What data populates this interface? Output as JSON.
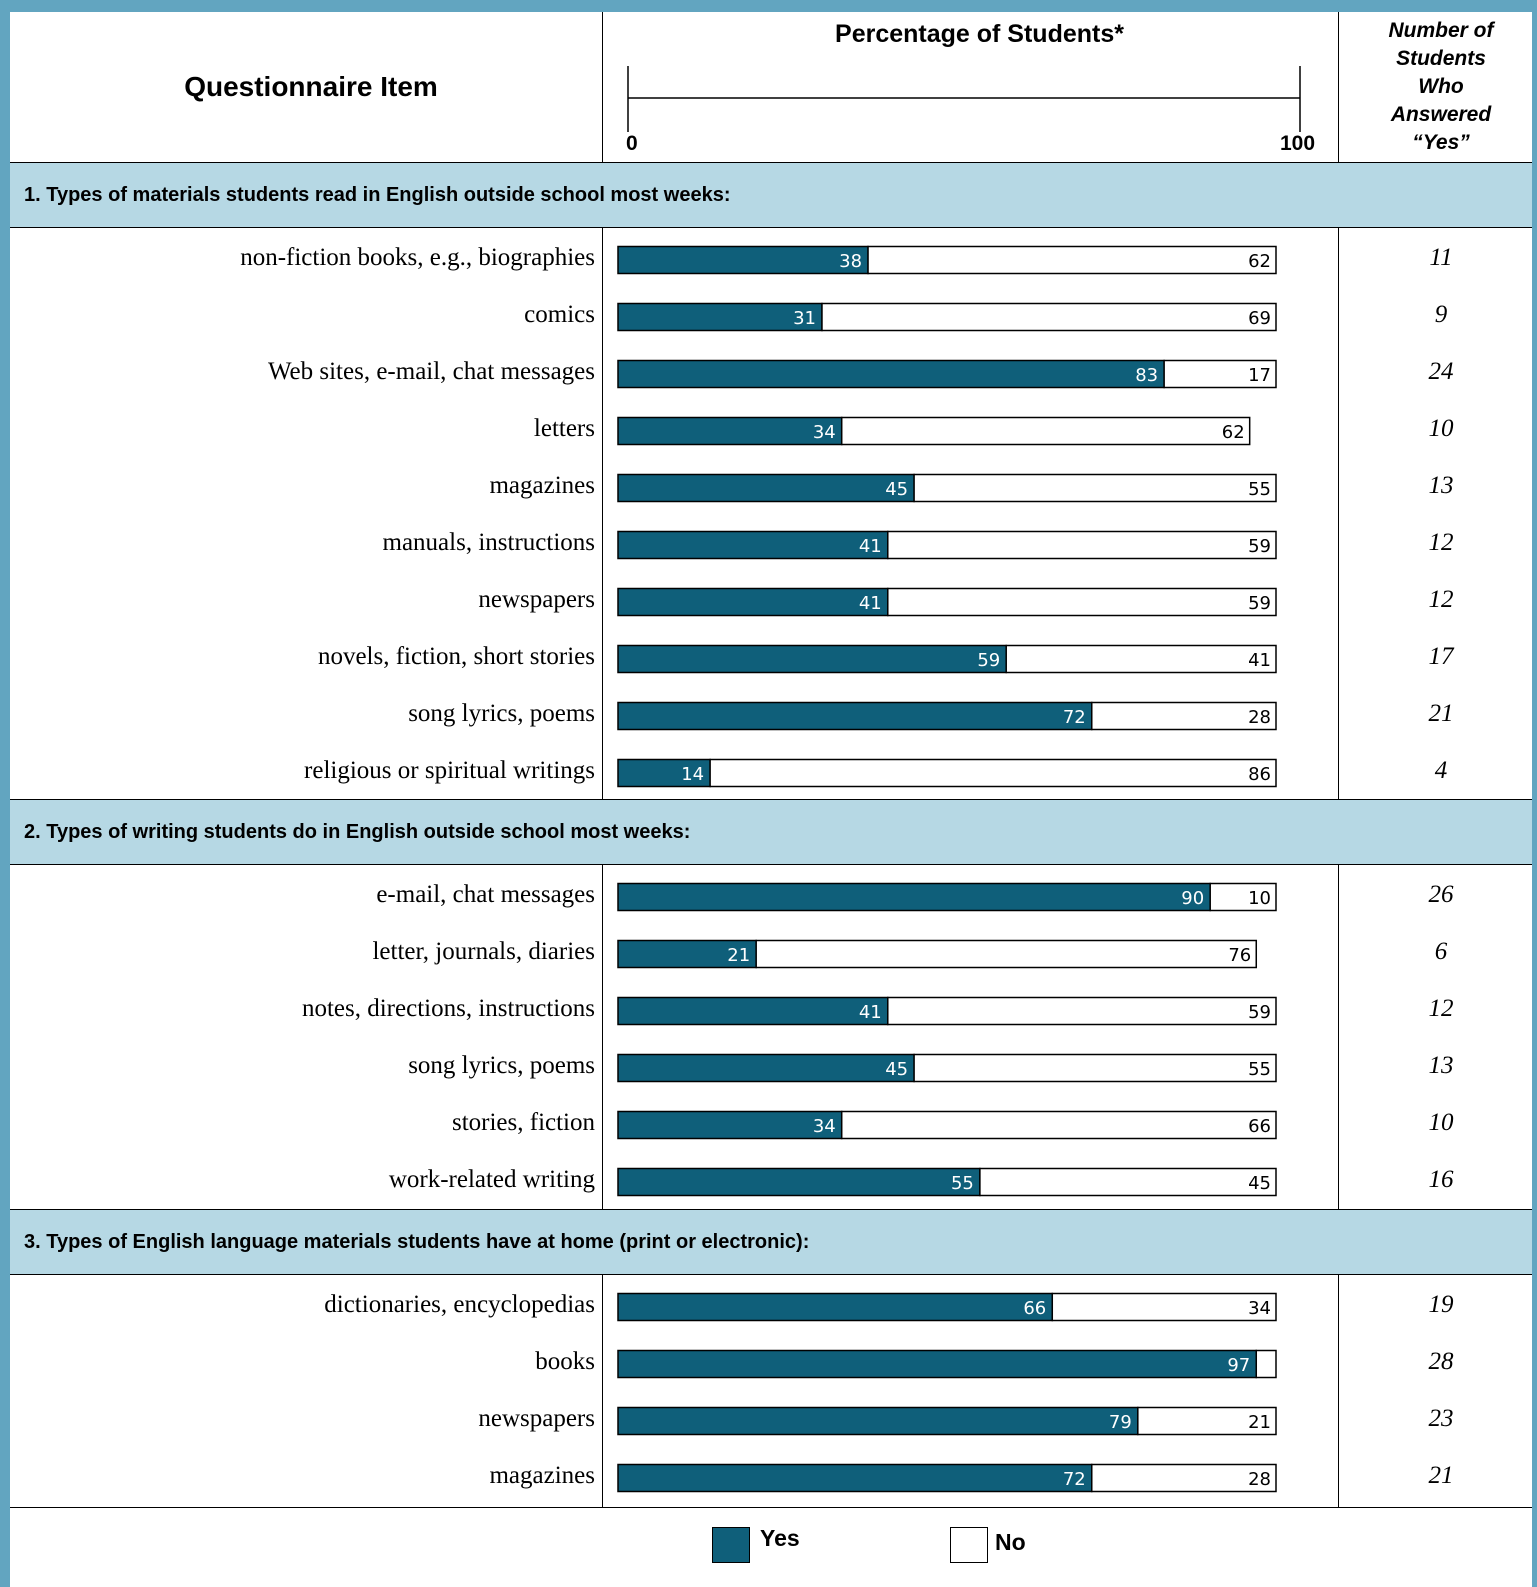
{
  "header": {
    "questionnaire_item": "Questionnaire Item",
    "percentage_title": "Percentage of Students*",
    "axis_min_label": "0",
    "axis_max_label": "100",
    "count_col_line1": "Number of",
    "count_col_line2": "Students",
    "count_col_line3": "Who",
    "count_col_line4": "Answered",
    "count_col_line5": "“Yes”"
  },
  "legend": {
    "yes_label": "Yes",
    "no_label": "No"
  },
  "colors": {
    "yes": "#0f5f7a",
    "no": "#ffffff",
    "band": "#b6d8e4",
    "frame": "#62a5c0"
  },
  "chart_data": {
    "type": "bar",
    "stacked": true,
    "orientation": "horizontal",
    "xlim": [
      0,
      100
    ],
    "series_names": [
      "Yes",
      "No"
    ],
    "sections": [
      {
        "title": "1. Types of materials students read in English outside school most weeks:",
        "items": [
          {
            "label": "non-fiction books, e.g., biographies",
            "yes": 38,
            "no": 62,
            "count": "11"
          },
          {
            "label": "comics",
            "yes": 31,
            "no": 69,
            "count": "9"
          },
          {
            "label": "Web sites, e-mail, chat messages",
            "yes": 83,
            "no": 17,
            "count": "24"
          },
          {
            "label": "letters",
            "yes": 34,
            "no": 62,
            "count": "10"
          },
          {
            "label": "magazines",
            "yes": 45,
            "no": 55,
            "count": "13"
          },
          {
            "label": "manuals, instructions",
            "yes": 41,
            "no": 59,
            "count": "12"
          },
          {
            "label": "newspapers",
            "yes": 41,
            "no": 59,
            "count": "12"
          },
          {
            "label": "novels, fiction, short stories",
            "yes": 59,
            "no": 41,
            "count": "17"
          },
          {
            "label": "song lyrics, poems",
            "yes": 72,
            "no": 28,
            "count": "21"
          },
          {
            "label": "religious or spiritual writings",
            "yes": 14,
            "no": 86,
            "count": "4"
          }
        ]
      },
      {
        "title": "2. Types of writing students do in English outside school most weeks:",
        "items": [
          {
            "label": "e-mail, chat messages",
            "yes": 90,
            "no": 10,
            "count": "26"
          },
          {
            "label": "letter, journals, diaries",
            "yes": 21,
            "no": 76,
            "count": "6"
          },
          {
            "label": "notes, directions, instructions",
            "yes": 41,
            "no": 59,
            "count": "12"
          },
          {
            "label": "song lyrics, poems",
            "yes": 45,
            "no": 55,
            "count": "13"
          },
          {
            "label": "stories, fiction",
            "yes": 34,
            "no": 66,
            "count": "10"
          },
          {
            "label": "work-related writing",
            "yes": 55,
            "no": 45,
            "count": "16"
          }
        ]
      },
      {
        "title": "3. Types of English language materials students have at home (print or electronic):",
        "items": [
          {
            "label": "dictionaries, encyclopedias",
            "yes": 66,
            "no": 34,
            "count": "19"
          },
          {
            "label": "books",
            "yes": 97,
            "no": 3,
            "no_label": "",
            "count": "28"
          },
          {
            "label": "newspapers",
            "yes": 79,
            "no": 21,
            "count": "23"
          },
          {
            "label": "magazines",
            "yes": 72,
            "no": 28,
            "count": "21"
          }
        ]
      }
    ]
  }
}
